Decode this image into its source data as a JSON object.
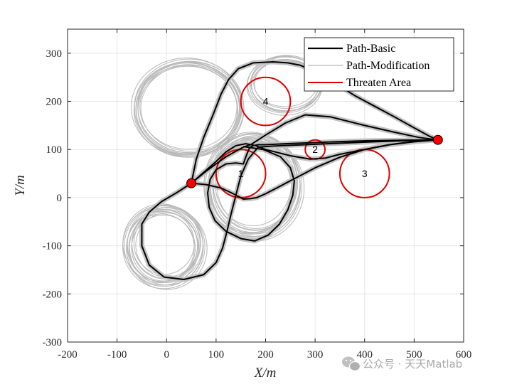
{
  "chart_data": {
    "type": "line",
    "xlabel": "X/m",
    "ylabel": "Y/m",
    "xlim": [
      -200,
      600
    ],
    "ylim": [
      -300,
      350
    ],
    "xticks": [
      -200,
      -100,
      0,
      100,
      200,
      300,
      400,
      500,
      600
    ],
    "yticks": [
      -300,
      -200,
      -100,
      0,
      100,
      200,
      300
    ],
    "grid": true,
    "legend_position": "top-right",
    "legend": [
      {
        "label": "Path-Basic",
        "color": "#000000"
      },
      {
        "label": "Path-Modification",
        "color": "#b4b4b4"
      },
      {
        "label": "Threaten Area",
        "color": "#e00000"
      }
    ],
    "endpoints": [
      {
        "name": "start",
        "x": 50,
        "y": 30
      },
      {
        "name": "goal",
        "x": 548,
        "y": 120
      }
    ],
    "threat_areas": [
      {
        "label": "1",
        "cx": 150,
        "cy": 50,
        "r": 50
      },
      {
        "label": "2",
        "cx": 300,
        "cy": 100,
        "r": 20
      },
      {
        "label": "3",
        "cx": 400,
        "cy": 50,
        "r": 50
      },
      {
        "label": "4",
        "cx": 200,
        "cy": 200,
        "r": 50
      }
    ],
    "basic_paths": [
      {
        "x": [
          50,
          80,
          110,
          135,
          155,
          170,
          182,
          200,
          250,
          300,
          350,
          400,
          450,
          500,
          548
        ],
        "y": [
          30,
          27,
          20,
          8,
          -3,
          -2,
          0,
          8,
          35,
          62,
          84,
          100,
          110,
          116,
          120
        ]
      },
      {
        "x": [
          50,
          20,
          -10,
          -35,
          -50,
          -50,
          -35,
          -5,
          35,
          75,
          100,
          113,
          122,
          130,
          140,
          150,
          165,
          185,
          230,
          280,
          350,
          420,
          500,
          548
        ],
        "y": [
          30,
          10,
          -8,
          -30,
          -55,
          -100,
          -140,
          -165,
          -170,
          -160,
          -135,
          -105,
          -70,
          -35,
          5,
          45,
          80,
          105,
          108,
          110,
          113,
          116,
          119,
          120
        ]
      },
      {
        "x": [
          50,
          100,
          120,
          140,
          160,
          180,
          200,
          250,
          290,
          320,
          350,
          400,
          450,
          500,
          548
        ],
        "y": [
          30,
          75,
          95,
          108,
          112,
          108,
          100,
          87,
          80,
          82,
          90,
          100,
          110,
          117,
          120
        ]
      },
      {
        "x": [
          50,
          80,
          120,
          155,
          170,
          200,
          240,
          280,
          330,
          400,
          460,
          510,
          548
        ],
        "y": [
          30,
          55,
          85,
          105,
          110,
          130,
          155,
          172,
          168,
          150,
          136,
          125,
          120
        ]
      },
      {
        "x": [
          50,
          60,
          75,
          95,
          110,
          125,
          145,
          175,
          215,
          245,
          270,
          300,
          340,
          380,
          420,
          460,
          500,
          530,
          548
        ],
        "y": [
          30,
          80,
          125,
          175,
          215,
          245,
          268,
          280,
          282,
          280,
          275,
          262,
          238,
          212,
          190,
          168,
          145,
          128,
          120
        ]
      },
      {
        "x": [
          155,
          195,
          230,
          250,
          258,
          255,
          245,
          228,
          205,
          178,
          150,
          120,
          98,
          86,
          83,
          88,
          100,
          120,
          140,
          155,
          162,
          168,
          175,
          185,
          200,
          240,
          290,
          340,
          400,
          460,
          520,
          548
        ],
        "y": [
          106,
          100,
          85,
          62,
          35,
          5,
          -25,
          -55,
          -78,
          -90,
          -85,
          -70,
          -48,
          -20,
          10,
          38,
          58,
          70,
          72,
          70,
          90,
          104,
          108,
          110,
          110,
          112,
          114,
          116,
          118,
          119,
          120,
          120
        ]
      }
    ],
    "modification_bands": [
      {
        "cx": 44,
        "cy": 185,
        "rx": 105,
        "ry": 95,
        "copies": 11,
        "spread": 14
      },
      {
        "cx": -5,
        "cy": -100,
        "rx": 72,
        "ry": 76,
        "copies": 14,
        "spread": 22
      },
      {
        "cx": 175,
        "cy": 25,
        "rx": 88,
        "ry": 100,
        "copies": 14,
        "spread": 22
      },
      {
        "cx": 240,
        "cy": 235,
        "rx": 70,
        "ry": 55,
        "copies": 8,
        "spread": 12
      }
    ]
  },
  "watermark": {
    "text": "公众号 · 天天Matlab",
    "icon": "wechat-icon"
  }
}
